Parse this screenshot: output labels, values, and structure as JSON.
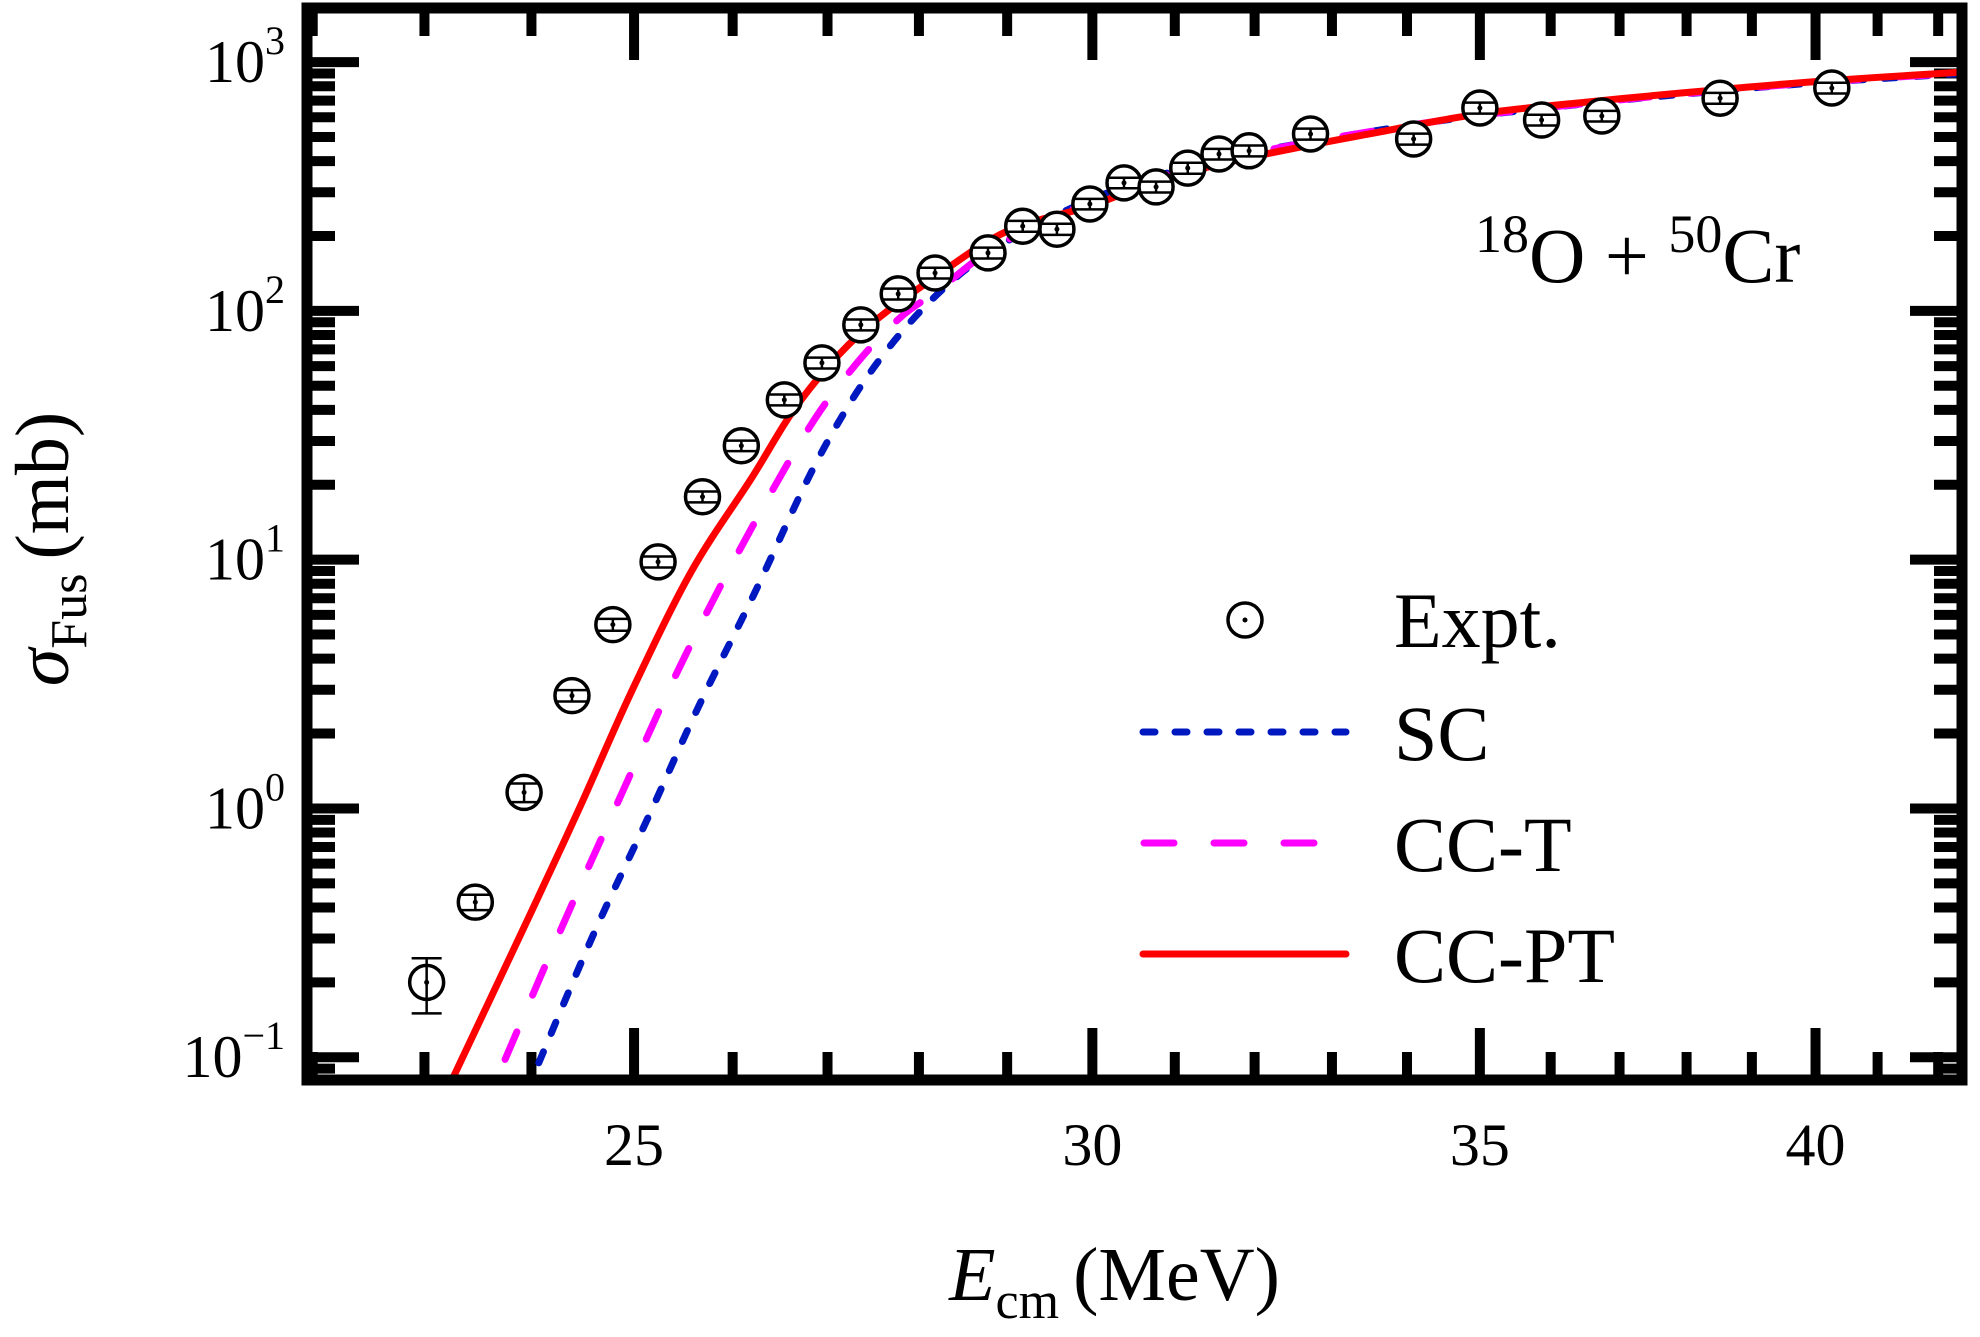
{
  "chart_data": {
    "type": "scatter+line",
    "title": "",
    "annotation": {
      "parts": [
        {
          "sup": "18",
          "text": "O"
        },
        {
          "text": " + "
        },
        {
          "sup": "50",
          "text": "Cr"
        }
      ]
    },
    "xlabel": {
      "main": "E",
      "sub": "cm",
      "unit": "(MeV)"
    },
    "ylabel": {
      "main": "σ",
      "sub": "Fus",
      "unit": "(mb)"
    },
    "xscale": "log",
    "yscale": "log",
    "xlim": [
      21.95,
      42.4
    ],
    "ylim": [
      0.081,
      1650
    ],
    "xticks": [
      25,
      30,
      35,
      40
    ],
    "xtick_labels": [
      "25",
      "30",
      "35",
      "40"
    ],
    "xminor": [
      22,
      23,
      24,
      26,
      27,
      28,
      29,
      31,
      32,
      33,
      34,
      36,
      37,
      38,
      39,
      41,
      42
    ],
    "yticks": [
      0.1,
      1,
      10,
      100,
      1000
    ],
    "ytick_labels": [
      {
        "base": "10",
        "exp": "−1"
      },
      {
        "base": "10",
        "exp": "0"
      },
      {
        "base": "10",
        "exp": "1"
      },
      {
        "base": "10",
        "exp": "2"
      },
      {
        "base": "10",
        "exp": "3"
      }
    ],
    "grid": false,
    "legend": {
      "position": "lower-right",
      "entries": [
        {
          "label": "Expt.",
          "kind": "marker"
        },
        {
          "label": "SC",
          "kind": "line",
          "series": "SC"
        },
        {
          "label": "CC-T",
          "kind": "line",
          "series": "CC-T"
        },
        {
          "label": "CC-PT",
          "kind": "line",
          "series": "CC-PT"
        }
      ]
    },
    "experimental": {
      "name": "Expt.",
      "x": [
        23.02,
        23.47,
        23.93,
        24.39,
        24.79,
        25.24,
        25.69,
        26.09,
        26.54,
        26.94,
        27.36,
        27.77,
        28.18,
        28.78,
        29.18,
        29.58,
        29.97,
        30.38,
        30.77,
        31.16,
        31.55,
        31.93,
        32.72,
        34.09,
        35.0,
        35.87,
        36.74,
        38.51,
        40.26
      ],
      "y": [
        0.2,
        0.42,
        1.16,
        2.84,
        5.48,
        9.8,
        17.9,
        28.7,
        43.9,
        61.8,
        87.9,
        117,
        142,
        171,
        219,
        213,
        269,
        327,
        315,
        375,
        427,
        440,
        514,
        491,
        654,
        585,
        607,
        716,
        787
      ],
      "yerr_low": [
        0.05,
        0.03,
        0.1,
        0.15,
        0.3,
        0.5,
        0.9,
        1.4,
        2.2,
        3.1,
        4.4,
        5.9,
        7.1,
        8.6,
        11,
        11,
        13,
        16,
        16,
        19,
        21,
        22,
        26,
        25,
        33,
        29,
        30,
        36,
        39
      ],
      "yerr_high": [
        0.05,
        0.03,
        0.1,
        0.15,
        0.3,
        0.5,
        0.9,
        1.4,
        2.2,
        3.1,
        4.4,
        5.9,
        7.1,
        8.6,
        11,
        11,
        13,
        16,
        16,
        19,
        21,
        22,
        26,
        25,
        33,
        29,
        30,
        36,
        39
      ],
      "color": "#000000"
    },
    "series": [
      {
        "name": "SC",
        "style": "dotted",
        "color": "#0018C0",
        "x": [
          24.07,
          24.6,
          25.14,
          25.65,
          26.22,
          26.79,
          27.21,
          27.58,
          28.02,
          28.51,
          29.06,
          29.6,
          30.2,
          31.0,
          32.0,
          33.0,
          34.0,
          35.0,
          36.5,
          38.0,
          40.0,
          42.4
        ],
        "y": [
          0.095,
          0.312,
          0.92,
          2.57,
          7.23,
          21.1,
          40.7,
          64.7,
          100,
          145,
          196,
          245,
          300,
          365,
          435,
          495,
          555,
          610,
          680,
          745,
          825,
          900
        ]
      },
      {
        "name": "CC-T",
        "style": "dashed",
        "color": "#FF00FF",
        "x": [
          23.75,
          24.3,
          24.87,
          25.44,
          26.07,
          26.79,
          27.31,
          27.79,
          28.2,
          28.79,
          29.4,
          30.0,
          31.0,
          32.0,
          33.0,
          34.0,
          35.0,
          36.5,
          38.0,
          40.0,
          42.4
        ],
        "y": [
          0.098,
          0.339,
          1.13,
          3.58,
          10.9,
          33.3,
          61.2,
          93.8,
          120,
          174,
          225,
          275,
          360,
          432,
          495,
          555,
          612,
          682,
          748,
          828,
          905
        ]
      },
      {
        "name": "CC-PT",
        "style": "solid",
        "color": "#FF0000",
        "x": [
          23.27,
          24.0,
          24.48,
          24.97,
          25.57,
          26.19,
          26.71,
          27.35,
          28.17,
          29.0,
          29.96,
          30.62,
          31.5,
          32.5,
          33.5,
          35.0,
          36.5,
          38.0,
          40.0,
          42.4
        ],
        "y": [
          0.084,
          0.385,
          1.04,
          2.92,
          8.87,
          21.1,
          43.5,
          80.9,
          136,
          209,
          263,
          318,
          385,
          450,
          515,
          620,
          690,
          755,
          835,
          912
        ]
      }
    ]
  }
}
